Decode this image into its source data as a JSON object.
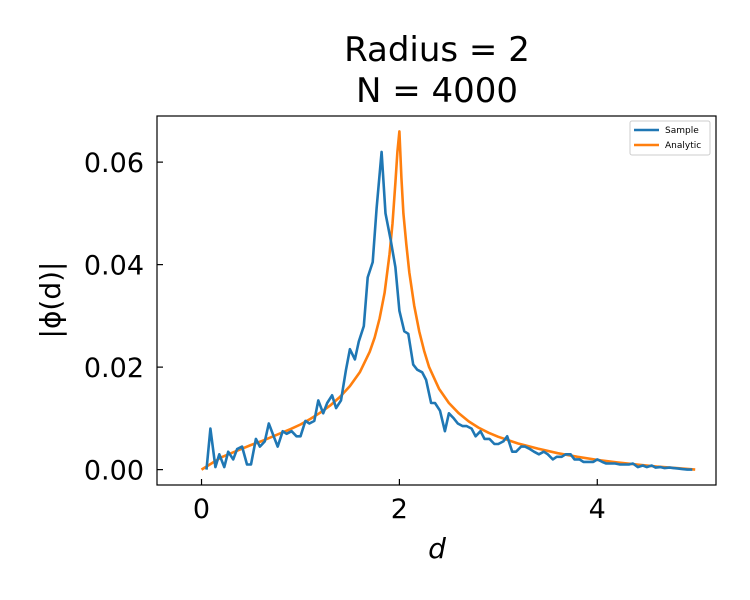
{
  "chart_data": {
    "type": "line",
    "title_line1": "Radius = 2",
    "title_line2": "N = 4000",
    "xlabel": "d",
    "ylabel": "|ϕ(d)|",
    "xlim": [
      -0.45,
      5.2
    ],
    "ylim": [
      -0.003,
      0.069
    ],
    "xticks": [
      0,
      2,
      4
    ],
    "xtick_labels": [
      "0",
      "2",
      "4"
    ],
    "yticks": [
      0.0,
      0.02,
      0.04,
      0.06
    ],
    "ytick_labels": [
      "0.00",
      "0.02",
      "0.04",
      "0.06"
    ],
    "grid": false,
    "legend": {
      "placement": "top-right"
    },
    "series": [
      {
        "name": "Sample",
        "color": "#1f77b4",
        "x": [
          0.05,
          0.09,
          0.14,
          0.18,
          0.23,
          0.27,
          0.32,
          0.36,
          0.41,
          0.46,
          0.5,
          0.55,
          0.59,
          0.64,
          0.68,
          0.73,
          0.77,
          0.82,
          0.86,
          0.91,
          0.96,
          1.0,
          1.05,
          1.09,
          1.14,
          1.18,
          1.23,
          1.27,
          1.32,
          1.36,
          1.41,
          1.46,
          1.5,
          1.55,
          1.59,
          1.64,
          1.68,
          1.73,
          1.77,
          1.82,
          1.86,
          1.91,
          1.96,
          2.0,
          2.05,
          2.09,
          2.14,
          2.18,
          2.23,
          2.27,
          2.32,
          2.36,
          2.41,
          2.46,
          2.5,
          2.55,
          2.59,
          2.64,
          2.68,
          2.73,
          2.77,
          2.82,
          2.86,
          2.91,
          2.96,
          3.0,
          3.05,
          3.09,
          3.14,
          3.18,
          3.23,
          3.27,
          3.32,
          3.36,
          3.41,
          3.46,
          3.5,
          3.55,
          3.59,
          3.64,
          3.68,
          3.73,
          3.77,
          3.82,
          3.86,
          3.91,
          3.96,
          4.0,
          4.05,
          4.09,
          4.14,
          4.18,
          4.23,
          4.27,
          4.32,
          4.36,
          4.41,
          4.46,
          4.5,
          4.55,
          4.59,
          4.64,
          4.68,
          4.73,
          4.77,
          4.82,
          4.86,
          4.91,
          4.96
        ],
        "y": [
          0.0,
          0.008,
          0.0005,
          0.003,
          0.0005,
          0.0035,
          0.002,
          0.004,
          0.0045,
          0.001,
          0.001,
          0.006,
          0.0045,
          0.0055,
          0.009,
          0.0065,
          0.0045,
          0.0075,
          0.007,
          0.0075,
          0.0065,
          0.0065,
          0.0095,
          0.009,
          0.0095,
          0.0135,
          0.011,
          0.013,
          0.0145,
          0.012,
          0.0135,
          0.0195,
          0.0235,
          0.0215,
          0.025,
          0.028,
          0.0375,
          0.0405,
          0.051,
          0.062,
          0.05,
          0.045,
          0.0395,
          0.031,
          0.027,
          0.0265,
          0.0205,
          0.0195,
          0.019,
          0.0175,
          0.013,
          0.013,
          0.0115,
          0.0075,
          0.011,
          0.01,
          0.009,
          0.0085,
          0.0085,
          0.008,
          0.0065,
          0.0075,
          0.006,
          0.006,
          0.005,
          0.005,
          0.0055,
          0.0065,
          0.0035,
          0.0035,
          0.0045,
          0.0045,
          0.004,
          0.0035,
          0.003,
          0.0035,
          0.003,
          0.002,
          0.0025,
          0.0025,
          0.003,
          0.003,
          0.002,
          0.002,
          0.0015,
          0.0015,
          0.0015,
          0.002,
          0.0015,
          0.0012,
          0.0012,
          0.0012,
          0.001,
          0.001,
          0.001,
          0.0012,
          0.0005,
          0.0008,
          0.0005,
          0.0008,
          0.0004,
          0.0005,
          0.0003,
          0.0004,
          0.0003,
          0.0002,
          0.0001,
          0.0,
          0.0
        ]
      },
      {
        "name": "Analytic",
        "color": "#ff7f0e",
        "x": [
          0.0,
          0.1,
          0.2,
          0.3,
          0.4,
          0.5,
          0.6,
          0.7,
          0.8,
          0.9,
          1.0,
          1.1,
          1.2,
          1.3,
          1.4,
          1.5,
          1.6,
          1.7,
          1.75,
          1.8,
          1.85,
          1.9,
          1.93,
          1.96,
          1.98,
          2.0,
          2.02,
          2.04,
          2.07,
          2.1,
          2.15,
          2.2,
          2.25,
          2.3,
          2.4,
          2.5,
          2.6,
          2.7,
          2.8,
          2.9,
          3.0,
          3.2,
          3.4,
          3.6,
          3.8,
          4.0,
          4.2,
          4.4,
          4.6,
          4.8,
          4.99
        ],
        "y": [
          0.0,
          0.0012,
          0.0024,
          0.0032,
          0.004,
          0.0048,
          0.0055,
          0.0063,
          0.0071,
          0.0079,
          0.0088,
          0.0099,
          0.0111,
          0.0125,
          0.0142,
          0.0163,
          0.019,
          0.023,
          0.0258,
          0.0295,
          0.0345,
          0.042,
          0.048,
          0.056,
          0.062,
          0.066,
          0.057,
          0.05,
          0.044,
          0.0385,
          0.032,
          0.027,
          0.0232,
          0.02,
          0.0158,
          0.013,
          0.011,
          0.0094,
          0.0082,
          0.0072,
          0.0064,
          0.0051,
          0.0041,
          0.0032,
          0.0025,
          0.0019,
          0.0014,
          0.001,
          0.0006,
          0.0003,
          0.0
        ]
      }
    ]
  }
}
